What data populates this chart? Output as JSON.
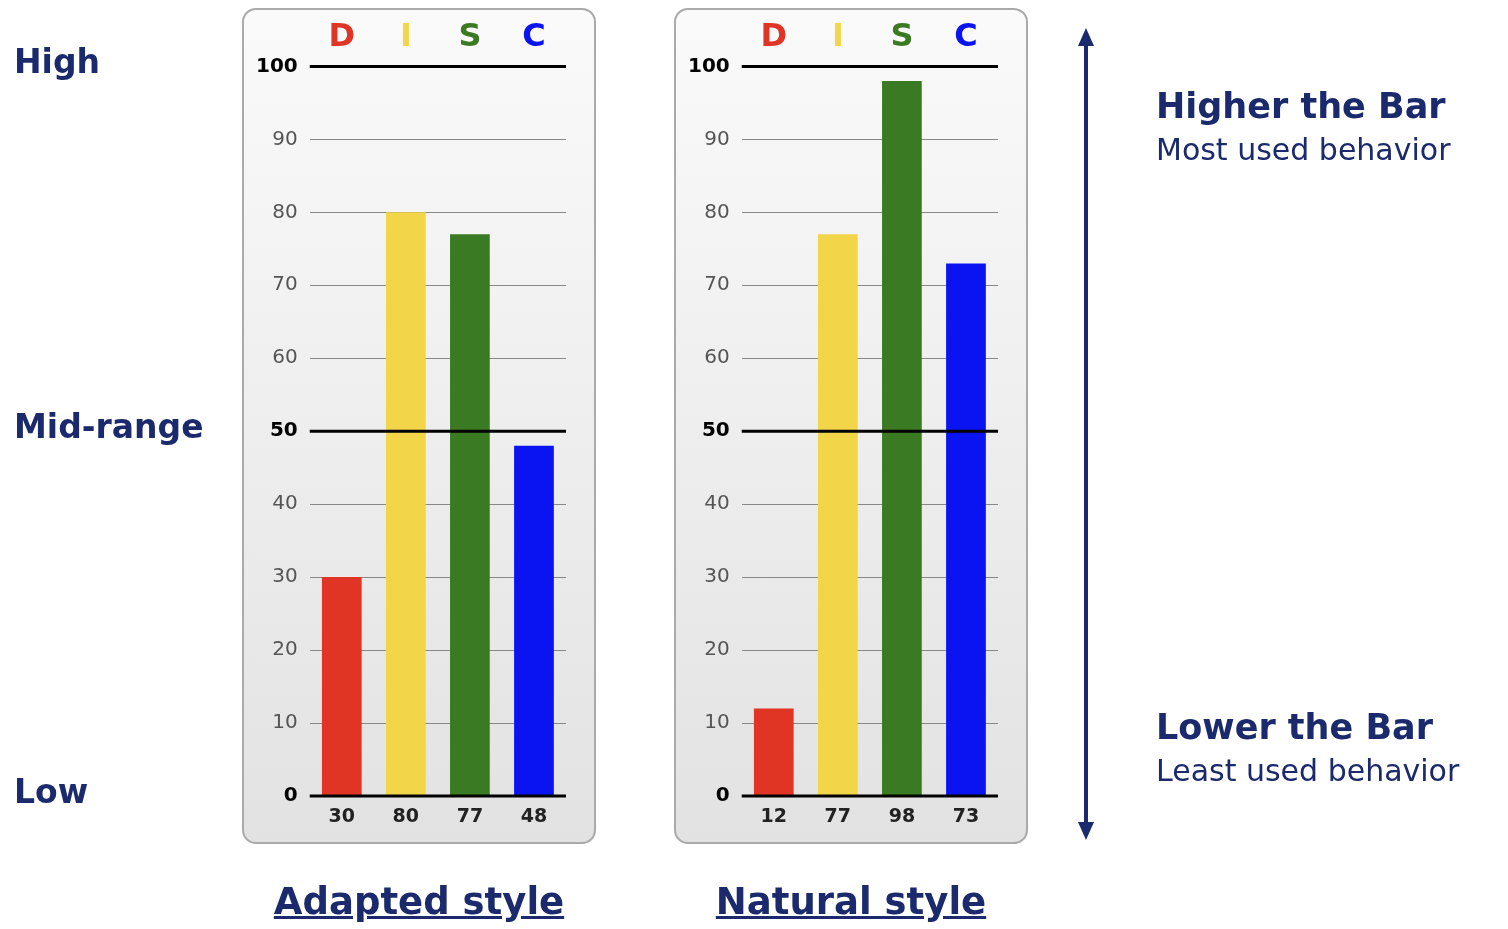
{
  "chart_data": [
    {
      "type": "bar",
      "title": "Adapted style",
      "categories": [
        "D",
        "I",
        "S",
        "C"
      ],
      "values": [
        30,
        80,
        77,
        48
      ],
      "colors": [
        "#e03424",
        "#f3d54a",
        "#3a7a22",
        "#0a14f0"
      ],
      "ylim": [
        0,
        100
      ],
      "yticks": [
        0,
        10,
        20,
        30,
        40,
        50,
        60,
        70,
        80,
        90,
        100
      ],
      "grid": "y",
      "data_labels": true,
      "ref_lines": [
        {
          "axis": "y",
          "value": 50,
          "color": "#000000"
        }
      ],
      "annotations": [
        "High",
        "Mid-range",
        "Low"
      ]
    },
    {
      "type": "bar",
      "title": "Natural style",
      "categories": [
        "D",
        "I",
        "S",
        "C"
      ],
      "values": [
        12,
        77,
        98,
        73
      ],
      "colors": [
        "#e03424",
        "#f3d54a",
        "#3a7a22",
        "#0a14f0"
      ],
      "ylim": [
        0,
        100
      ],
      "yticks": [
        0,
        10,
        20,
        30,
        40,
        50,
        60,
        70,
        80,
        90,
        100
      ],
      "grid": "y",
      "data_labels": true,
      "ref_lines": [
        {
          "axis": "y",
          "value": 50,
          "color": "#000000"
        }
      ],
      "annotations": [
        "Higher the Bar",
        "Most used behavior",
        "Lower the Bar",
        "Least used behavior"
      ]
    }
  ]
}
